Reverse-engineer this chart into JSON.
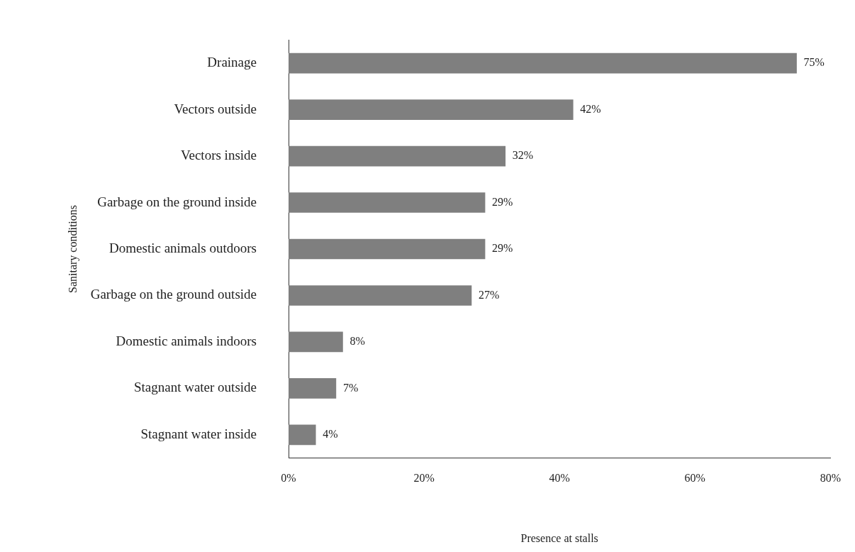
{
  "chart_data": {
    "type": "bar",
    "orientation": "horizontal",
    "xlabel": "Presence at stalls",
    "ylabel": "Sanitary conditions",
    "categories": [
      "Drainage",
      "Vectors outside",
      "Vectors inside",
      "Garbage on the ground inside",
      "Domestic animals outdoors",
      "Garbage on the ground outside",
      "Domestic animals indoors",
      "Stagnant water outside",
      "Stagnant water inside"
    ],
    "values": [
      75,
      42,
      32,
      29,
      29,
      27,
      8,
      7,
      4
    ],
    "value_labels": [
      "75%",
      "42%",
      "32%",
      "29%",
      "29%",
      "27%",
      "8%",
      "7%",
      "4%"
    ],
    "color": "#7f7f7f",
    "xlim": [
      0,
      80
    ],
    "xticks": [
      {
        "value": 0,
        "label": "0%"
      },
      {
        "value": 20,
        "label": "20%"
      },
      {
        "value": 40,
        "label": "40%"
      },
      {
        "value": 60,
        "label": "60%"
      },
      {
        "value": 80,
        "label": "80%"
      }
    ],
    "grid": false,
    "legend": false
  }
}
